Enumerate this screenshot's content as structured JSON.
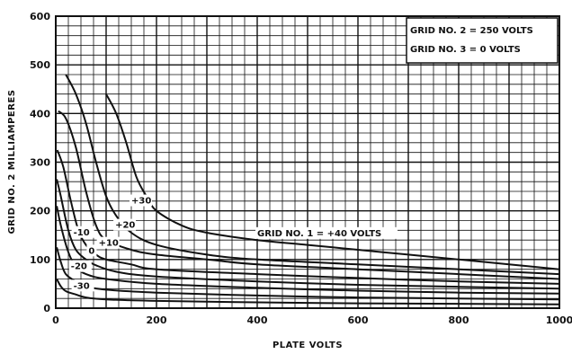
{
  "chart_data": {
    "type": "line",
    "title": "",
    "xlabel": "PLATE VOLTS",
    "ylabel": "GRID NO. 2 MILLIAMPERES",
    "xlim": [
      0,
      1000
    ],
    "ylim": [
      0,
      600
    ],
    "x_ticks": [
      "0",
      "200",
      "400",
      "600",
      "800",
      "1000"
    ],
    "y_ticks": [
      "0",
      "100",
      "200",
      "300",
      "400",
      "500",
      "600"
    ],
    "grid": true,
    "legend_box": {
      "position": "top-right",
      "lines": [
        "GRID NO. 2 = 250 VOLTS",
        "GRID NO. 3 = 0 VOLTS"
      ]
    },
    "series": [
      {
        "name": "GRID NO. 1 = +40 VOLTS",
        "label_x": 400,
        "label_y": 148,
        "x": [
          100,
          120,
          140,
          160,
          180,
          200,
          250,
          300,
          400,
          500,
          600,
          700,
          800,
          900,
          1000
        ],
        "y": [
          440,
          400,
          340,
          270,
          230,
          200,
          170,
          155,
          140,
          130,
          120,
          110,
          100,
          90,
          80
        ]
      },
      {
        "name": "+30",
        "label_x": 150,
        "label_y": 215,
        "x": [
          20,
          40,
          60,
          80,
          100,
          120,
          150,
          200,
          300,
          400,
          600,
          800,
          1000
        ],
        "y": [
          480,
          440,
          380,
          300,
          230,
          190,
          155,
          130,
          110,
          100,
          90,
          80,
          70
        ]
      },
      {
        "name": "+20",
        "label_x": 118,
        "label_y": 165,
        "x": [
          5,
          20,
          40,
          60,
          80,
          100,
          150,
          200,
          300,
          400,
          600,
          800,
          1000
        ],
        "y": [
          405,
          390,
          330,
          240,
          170,
          140,
          120,
          110,
          100,
          90,
          80,
          70,
          60
        ]
      },
      {
        "name": "+10",
        "label_x": 85,
        "label_y": 128,
        "x": [
          3,
          15,
          30,
          45,
          60,
          80,
          100,
          150,
          200,
          400,
          600,
          800,
          1000
        ],
        "y": [
          325,
          290,
          220,
          160,
          130,
          110,
          100,
          90,
          80,
          70,
          62,
          55,
          50
        ]
      },
      {
        "name": "0",
        "label_x": 65,
        "label_y": 112,
        "x": [
          2,
          10,
          25,
          40,
          60,
          80,
          120,
          200,
          400,
          600,
          800,
          1000
        ],
        "y": [
          265,
          230,
          160,
          120,
          100,
          88,
          75,
          65,
          55,
          48,
          44,
          40
        ]
      },
      {
        "name": "-10",
        "label_x": 35,
        "label_y": 150,
        "x": [
          2,
          10,
          25,
          40,
          60,
          100,
          200,
          400,
          600,
          800,
          1000
        ],
        "y": [
          210,
          170,
          115,
          85,
          70,
          60,
          50,
          42,
          36,
          32,
          30
        ]
      },
      {
        "name": "-20",
        "label_x": 30,
        "label_y": 80,
        "x": [
          2,
          10,
          20,
          40,
          60,
          100,
          200,
          400,
          600,
          800,
          1000
        ],
        "y": [
          125,
          95,
          70,
          55,
          45,
          38,
          32,
          26,
          22,
          20,
          18
        ]
      },
      {
        "name": "-30",
        "label_x": 35,
        "label_y": 40,
        "x": [
          2,
          10,
          20,
          40,
          60,
          100,
          200,
          400,
          600,
          800,
          1000
        ],
        "y": [
          60,
          45,
          35,
          28,
          22,
          18,
          15,
          12,
          10,
          9,
          8
        ]
      }
    ]
  }
}
